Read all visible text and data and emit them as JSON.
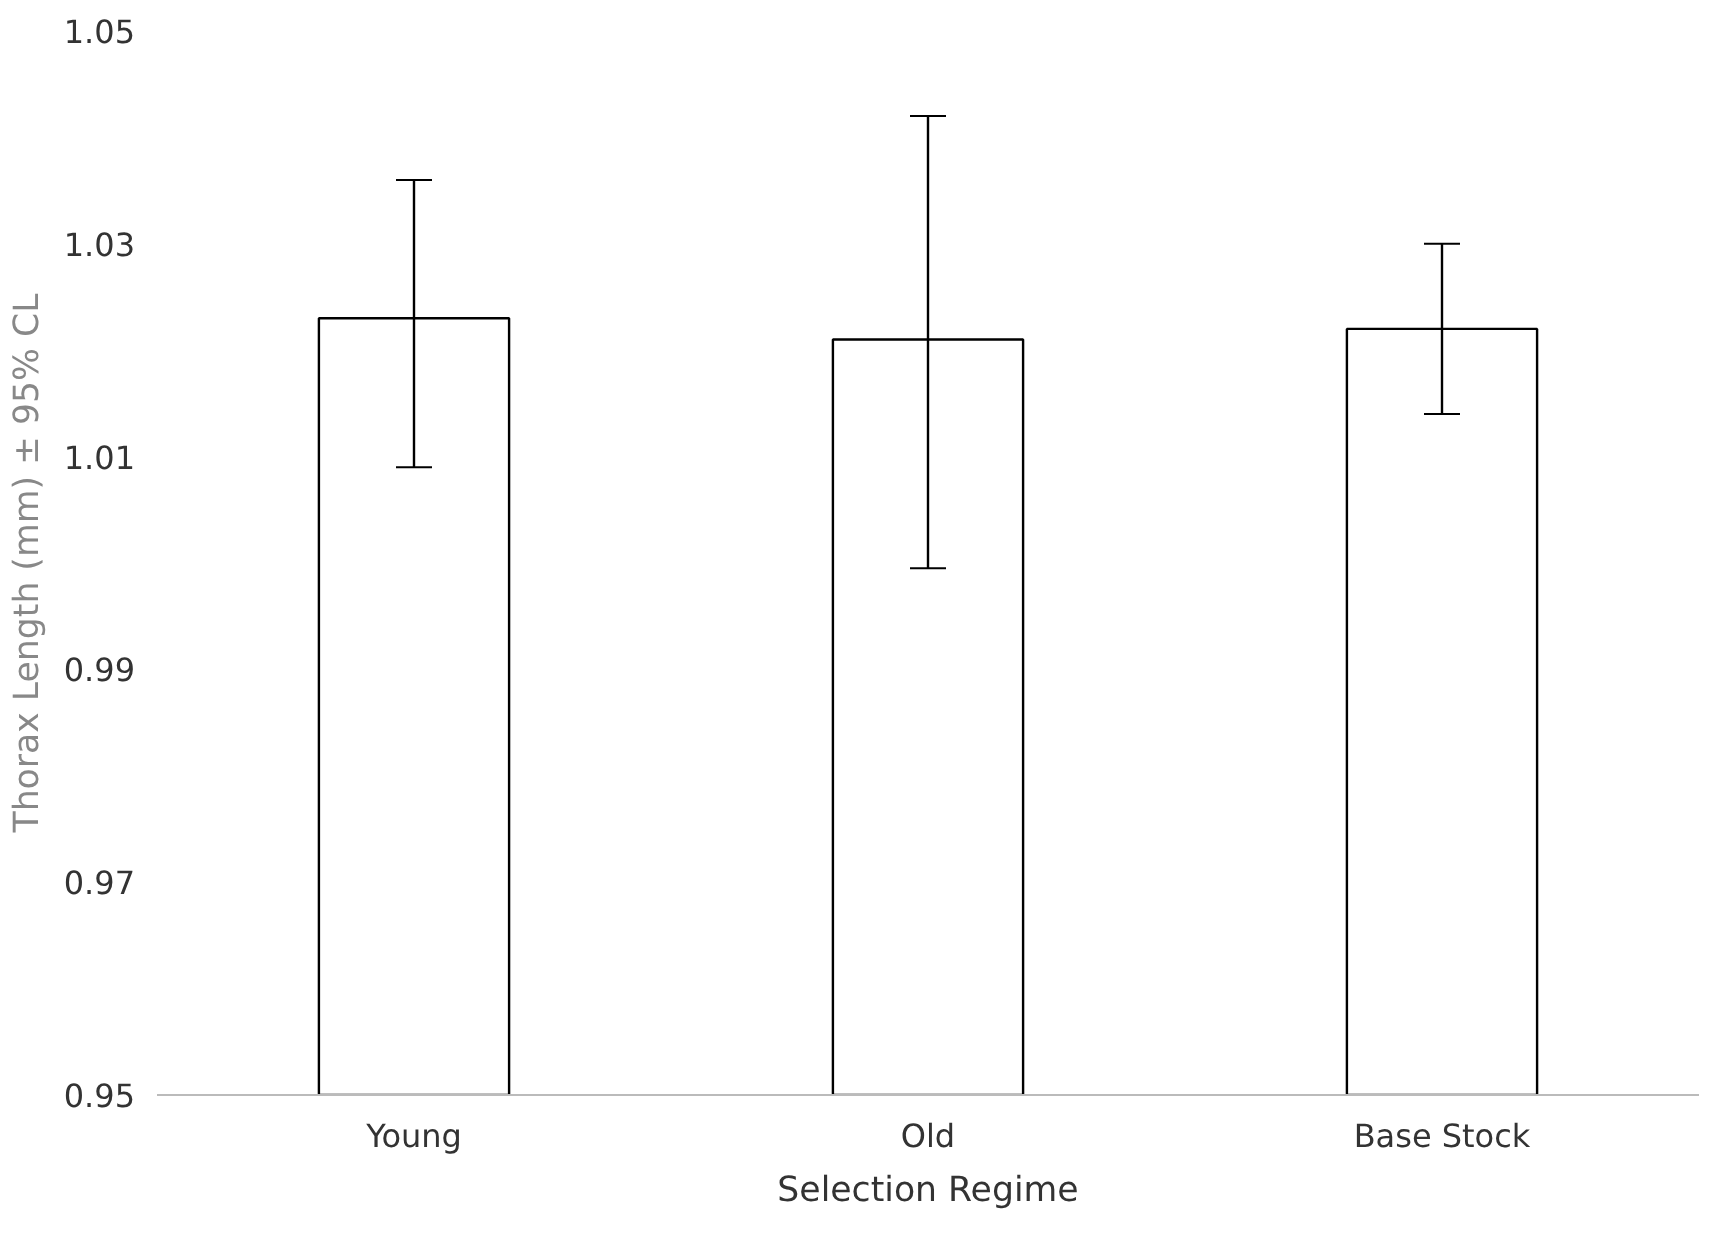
{
  "chart_data": {
    "type": "bar",
    "xlabel": "Selection Regime",
    "ylabel": "Thorax Length (mm) ± 95% CL",
    "categories": [
      "Young",
      "Old",
      "Base Stock"
    ],
    "values": [
      1.023,
      1.021,
      1.022
    ],
    "errors": [
      [
        1.009,
        1.036
      ],
      [
        0.9995,
        1.042
      ],
      [
        1.014,
        1.03
      ]
    ],
    "color": "#ffffff",
    "ylim": [
      0.95,
      1.05
    ],
    "yticks": [
      {
        "value": 0.95,
        "label": "0.95"
      },
      {
        "value": 0.97,
        "label": "0.97"
      },
      {
        "value": 0.99,
        "label": "0.99"
      },
      {
        "value": 1.01,
        "label": "1.01"
      },
      {
        "value": 1.03,
        "label": "1.03"
      },
      {
        "value": 1.05,
        "label": "1.05"
      }
    ],
    "grid": false
  }
}
